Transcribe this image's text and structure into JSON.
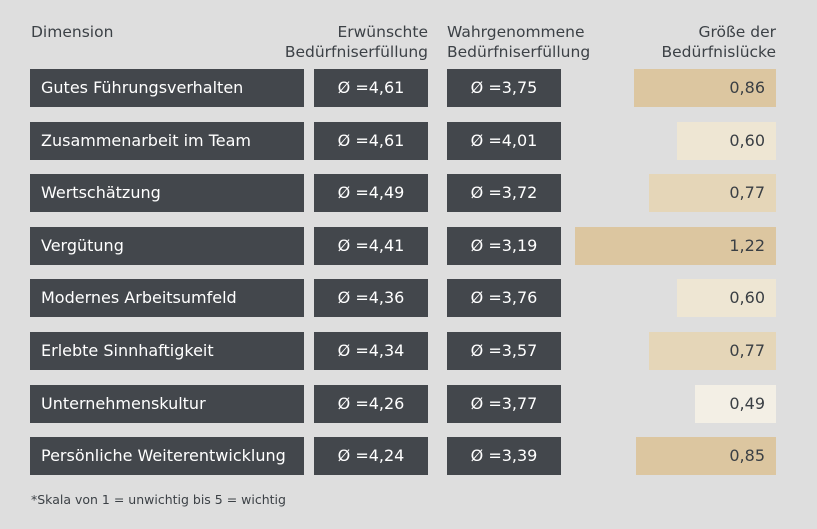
{
  "headers": {
    "dimension": "Dimension",
    "desired_line1": "Erwünschte",
    "desired_line2": "Bedürfniserfüllung",
    "perceived_line1": "Wahrgenommene",
    "perceived_line2": "Bedürfniserfüllung",
    "gap_line1": "Größe der",
    "gap_line2": "Bedürfnislücke"
  },
  "footnote": "*Skala von 1 = unwichtig bis 5 = wichtig",
  "colors": {
    "background": "#dedede",
    "cell": "#43474c",
    "gap_strong": "#dcc6a0",
    "gap_medium": "#e5d6b8",
    "gap_light": "#eee6d3",
    "gap_faint": "#f3efe5"
  },
  "chart_data": {
    "type": "table",
    "rows": [
      {
        "dimension": "Gutes Führungsverhalten",
        "desired": "Ø =4,61",
        "perceived": "Ø =3,75",
        "gap": "0,86",
        "gap_value": 0.86
      },
      {
        "dimension": "Zusammenarbeit im Team",
        "desired": "Ø =4,61",
        "perceived": "Ø =4,01",
        "gap": "0,60",
        "gap_value": 0.6
      },
      {
        "dimension": "Wertschätzung",
        "desired": "Ø =4,49",
        "perceived": "Ø =3,72",
        "gap": "0,77",
        "gap_value": 0.77
      },
      {
        "dimension": "Vergütung",
        "desired": "Ø =4,41",
        "perceived": "Ø =3,19",
        "gap": "1,22",
        "gap_value": 1.22
      },
      {
        "dimension": "Modernes Arbeitsumfeld",
        "desired": "Ø =4,36",
        "perceived": "Ø =3,76",
        "gap": "0,60",
        "gap_value": 0.6
      },
      {
        "dimension": "Erlebte Sinnhaftigkeit",
        "desired": "Ø =4,34",
        "perceived": "Ø =3,57",
        "gap": "0,77",
        "gap_value": 0.77
      },
      {
        "dimension": "Unternehmenskultur",
        "desired": "Ø =4,26",
        "perceived": "Ø =3,77",
        "gap": "0,49",
        "gap_value": 0.49
      },
      {
        "dimension": "Persönliche Weiterentwicklung",
        "desired": "Ø =4,24",
        "perceived": "Ø =3,39",
        "gap": "0,85",
        "gap_value": 0.85
      }
    ]
  }
}
